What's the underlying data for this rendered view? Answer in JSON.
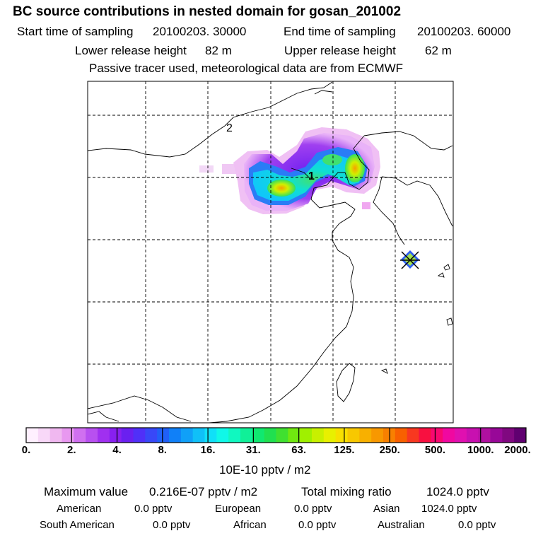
{
  "header": {
    "title": "BC  source contributions in nested domain for gosan_201002",
    "start_label": "Start time of sampling",
    "start_value": "20100203. 30000",
    "end_label": "End time of sampling",
    "end_value": "20100203. 60000",
    "lower_label": "Lower release height",
    "lower_value": "82 m",
    "upper_label": "Upper release height",
    "upper_value": "62 m",
    "subtitle": "Passive tracer used, meteorological data are from ECMWF"
  },
  "chart_data": {
    "type": "heatmap",
    "title": "BC  source contributions in nested domain for gosan_201002",
    "map_labels": [
      "1",
      "2"
    ],
    "receptor_marker": "gosan",
    "colorbar": {
      "ticks": [
        "0.",
        "2.",
        "4.",
        "8.",
        "16.",
        "31.",
        "63.",
        "125.",
        "250.",
        "500.",
        "1000.",
        "2000."
      ],
      "unit": "10E-10 pptv / m2",
      "colors": [
        "#fff0ff",
        "#f8d8f8",
        "#f0b8f0",
        "#e898f0",
        "#d070f0",
        "#b850f0",
        "#a030f0",
        "#8820f0",
        "#6a20f0",
        "#5030f8",
        "#3848f8",
        "#2060f8",
        "#1080f8",
        "#10a0f8",
        "#10c0f8",
        "#10e0f8",
        "#10f8e8",
        "#10f8c0",
        "#10f098",
        "#10e870",
        "#20e050",
        "#40e030",
        "#70e810",
        "#a0f000",
        "#c8f000",
        "#e8f000",
        "#f8e000",
        "#f8c800",
        "#f8b000",
        "#f89800",
        "#f88000",
        "#f86000",
        "#f83820",
        "#f81040",
        "#f80870",
        "#f008a0",
        "#e010b0",
        "#c810b0",
        "#b010a0",
        "#980898",
        "#800880",
        "#600070"
      ]
    }
  },
  "footer": {
    "max_label": "Maximum value",
    "max_value": "0.216E-07 pptv / m2",
    "total_label": "Total mixing ratio",
    "total_value": "1024.0 pptv",
    "american_label": "American",
    "american_value": "0.0 pptv",
    "european_label": "European",
    "european_value": "0.0 pptv",
    "asian_label": "Asian",
    "asian_value": "1024.0 pptv",
    "southamerican_label": "South American",
    "southamerican_value": "0.0 pptv",
    "african_label": "African",
    "african_value": "0.0 pptv",
    "australian_label": "Australian",
    "australian_value": "0.0 pptv"
  }
}
